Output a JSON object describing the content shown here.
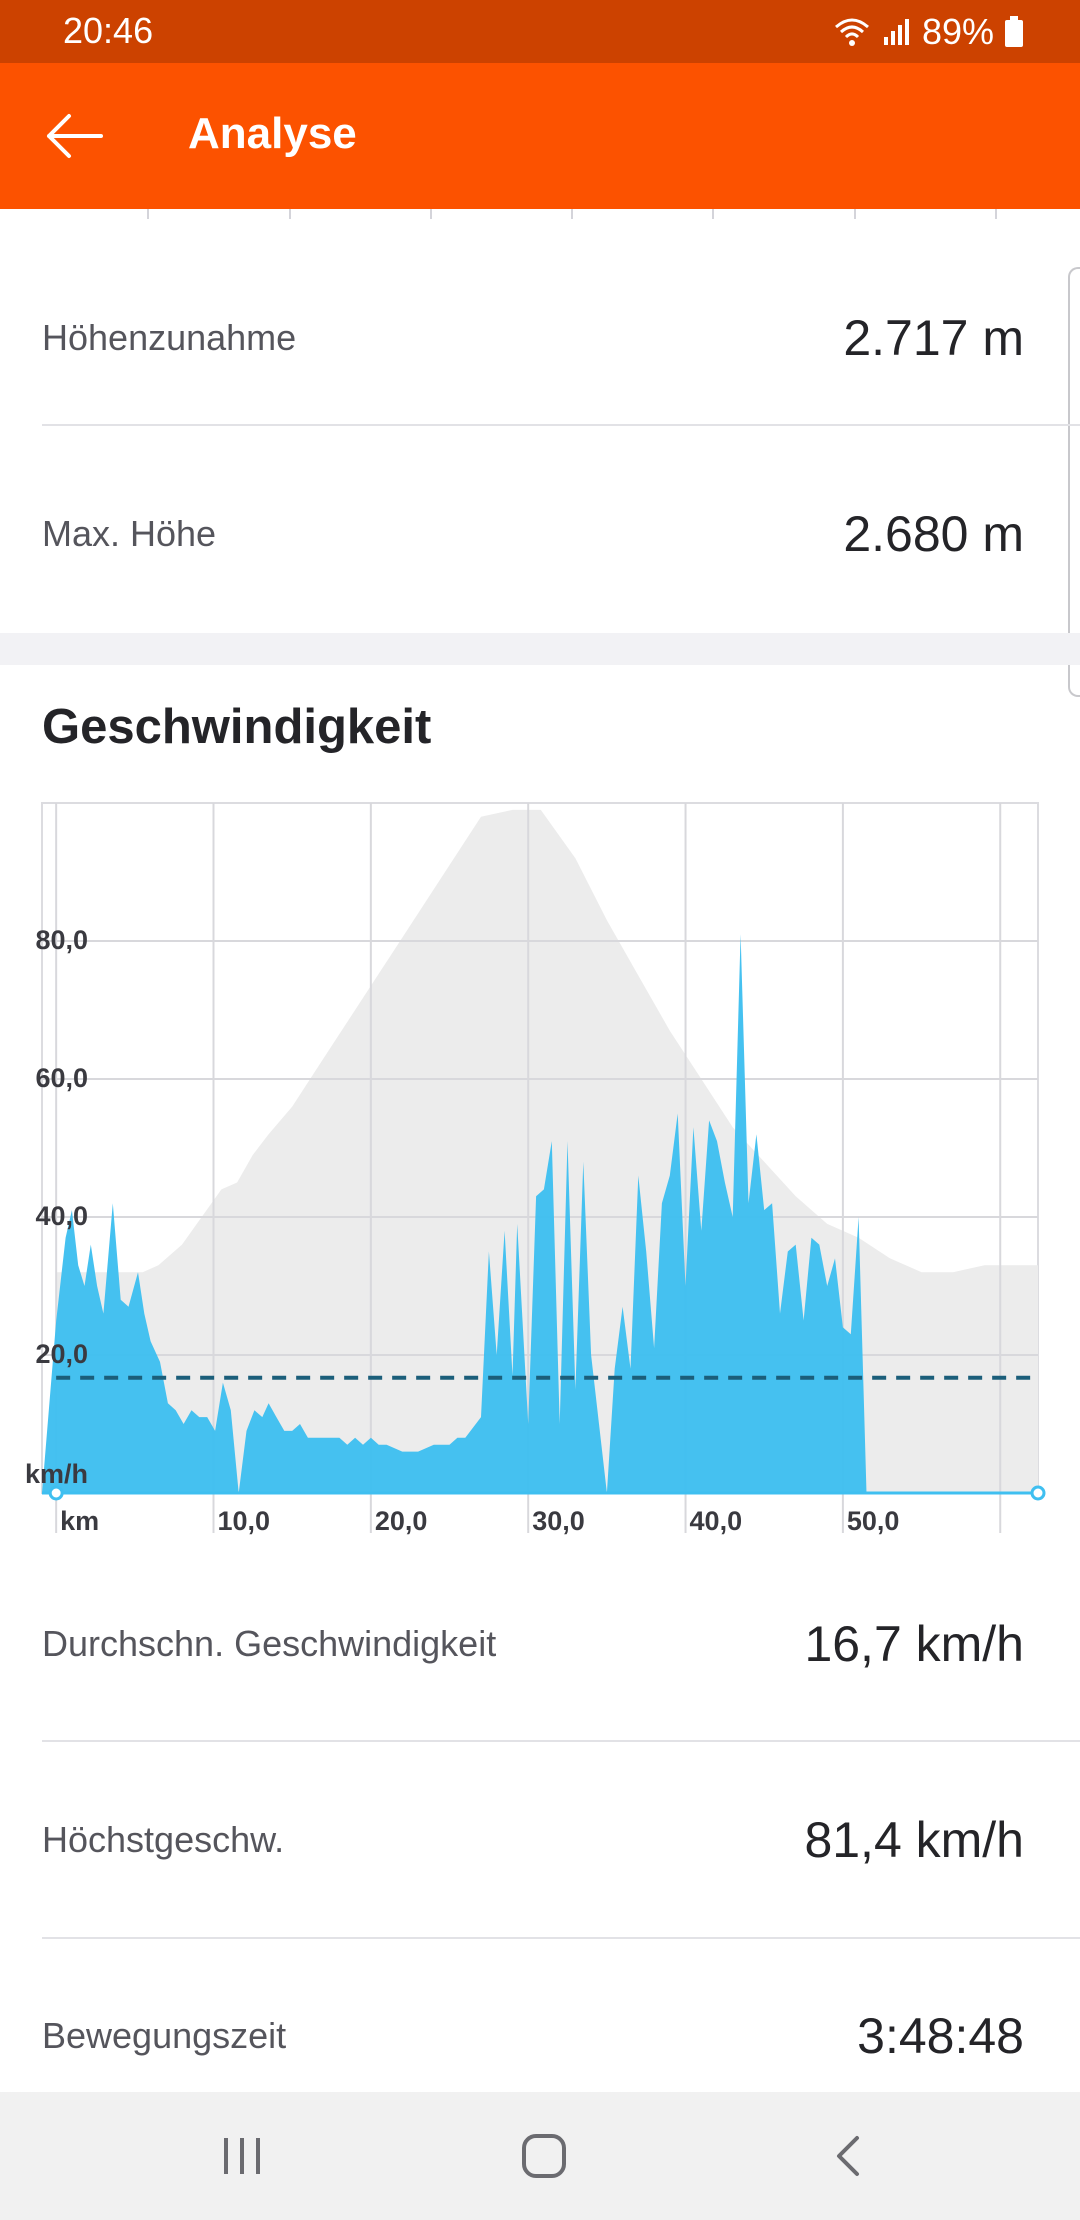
{
  "status_bar": {
    "time": "20:46",
    "battery": "89%"
  },
  "app_bar": {
    "title": "Analyse"
  },
  "elevation": {
    "stats": [
      {
        "label": "Höhenzunahme",
        "value": "2.717 m"
      },
      {
        "label": "Max. Höhe",
        "value": "2.680 m"
      }
    ]
  },
  "speed": {
    "title": "Geschwindigkeit",
    "stats": [
      {
        "label": "Durchschn. Geschwindigkeit",
        "value": "16,7 km/h"
      },
      {
        "label": "Höchstgeschw.",
        "value": "81,4 km/h"
      },
      {
        "label": "Bewegungszeit",
        "value": "3:48:48"
      }
    ]
  },
  "colors": {
    "accent": "#fc5200",
    "status_bar": "#cc4200",
    "speed_fill": "#3fbff0",
    "elevation_fill": "#ececec",
    "average_line": "#1b5e7a"
  },
  "chart_data": {
    "type": "area",
    "ylabel": "km/h",
    "xlabel": "km",
    "ylim": [
      0,
      100
    ],
    "xlim": [
      -0.9,
      62.4
    ],
    "yticks": [
      20,
      40,
      60,
      80
    ],
    "ytick_labels": [
      "20,0",
      "40,0",
      "60,0",
      "80,0"
    ],
    "xticks": [
      10,
      20,
      30,
      40,
      50
    ],
    "xtick_labels": [
      "10,0",
      "20,0",
      "30,0",
      "40,0",
      "50,0"
    ],
    "grid": true,
    "average": 16.7,
    "series": [
      {
        "values_x": [
          -0.9,
          0.0,
          0.6,
          1.0,
          1.4,
          1.8,
          2.2,
          2.6,
          3.0,
          3.6,
          4.1,
          4.6,
          5.2,
          5.6,
          6.0,
          6.6,
          7.1,
          7.6,
          8.1,
          8.6,
          9.1,
          9.6,
          10.1,
          10.6,
          11.1,
          11.6,
          12.1,
          12.6,
          13.1,
          13.5,
          14.0,
          14.5,
          15.0,
          15.5,
          16.0,
          16.5,
          17.0,
          17.5,
          18.0,
          18.5,
          19.0,
          19.5,
          20.0,
          20.5,
          21.0,
          22.0,
          23.0,
          24.0,
          25.0,
          25.5,
          26.0,
          27.0,
          27.5,
          28.0,
          28.5,
          29.0,
          29.3,
          30.0,
          30.5,
          31.0,
          31.5,
          32.0,
          32.5,
          33.0,
          33.5,
          34.0,
          34.5,
          35.0,
          35.5,
          36.0,
          36.5,
          37.0,
          37.5,
          38.0,
          38.5,
          39.0,
          39.5,
          40.0,
          40.5,
          41.0,
          41.5,
          42.0,
          42.5,
          43.0,
          43.5,
          44.0,
          44.5,
          45.0,
          45.5,
          46.0,
          46.5,
          47.0,
          47.5,
          48.0,
          48.5,
          49.0,
          49.5,
          50.0,
          50.5,
          51.0,
          51.5,
          52.0,
          52.5,
          53.0,
          53.5,
          54.0,
          54.5,
          55.0,
          55.5,
          56.0,
          56.5,
          57.0,
          57.5,
          58.0,
          58.5,
          59.0,
          59.5,
          60.0,
          60.5,
          61.0,
          61.5,
          62.0,
          62.4
        ],
        "values": [
          0,
          25,
          37,
          41,
          33,
          30,
          36,
          30,
          26,
          42,
          28,
          27,
          32,
          26,
          22,
          19,
          13,
          12,
          10,
          12,
          11,
          11,
          9,
          16,
          12,
          0,
          9,
          12,
          11,
          13,
          11,
          9,
          9,
          10,
          8,
          8,
          8,
          8,
          8,
          7,
          8,
          7,
          8,
          7,
          7,
          6,
          6,
          7,
          7,
          8,
          8,
          11,
          35,
          20,
          38,
          17,
          39,
          10,
          43,
          44,
          51,
          10,
          51,
          15,
          48,
          20,
          10,
          0,
          18,
          27,
          18,
          46,
          35,
          21,
          42,
          46,
          55,
          30,
          53,
          38,
          54,
          51,
          45,
          40,
          81,
          42,
          52,
          41,
          42,
          26,
          35,
          36,
          25,
          37,
          36,
          30,
          34,
          24,
          23,
          40,
          0,
          0,
          0,
          0,
          0,
          0,
          0,
          0,
          0,
          0,
          0,
          0,
          0,
          0,
          0,
          0,
          0,
          0,
          0,
          0,
          0,
          0,
          0
        ],
        "name": ""
      },
      {
        "values_x": [
          0,
          5.5,
          6.5,
          8.0,
          10.5,
          11.5,
          12.5,
          13.5,
          15.0,
          17.0,
          19.0,
          21.0,
          23.0,
          25.0,
          27.0,
          29.0,
          30.8,
          33.0,
          35.0,
          37.0,
          39.0,
          41.0,
          43.0,
          45.0,
          47.0,
          49.0,
          51.0,
          53.0,
          55.0,
          57.0,
          59.0,
          60.0,
          62.4
        ],
        "values": [
          32,
          32,
          33,
          36,
          44,
          45,
          49,
          52,
          56,
          63,
          70,
          77,
          84,
          91,
          98,
          99,
          99,
          92,
          83,
          75,
          67,
          60,
          53,
          48,
          43,
          39,
          37,
          34,
          32,
          32,
          33,
          33,
          33
        ],
        "name": ""
      }
    ]
  }
}
